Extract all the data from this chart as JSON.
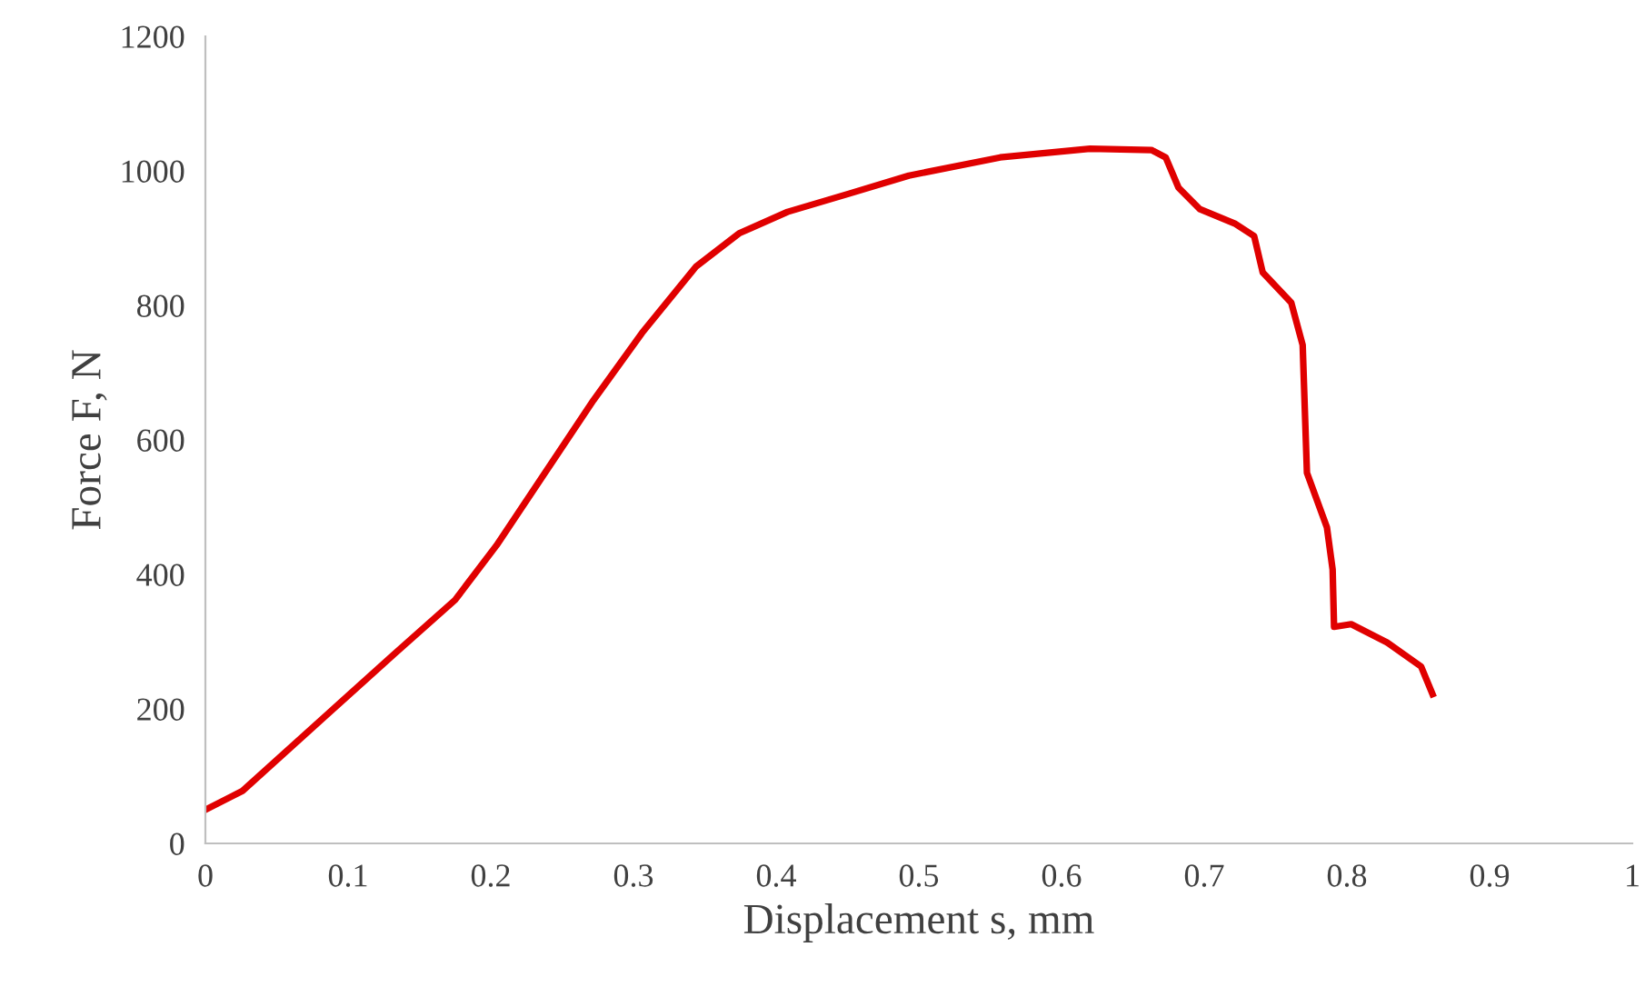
{
  "chart_data": {
    "type": "line",
    "xlabel": "Displacement s, mm",
    "ylabel": "Force F, N",
    "xlim": [
      0,
      1
    ],
    "xticks": [
      0,
      0.1,
      0.2,
      0.3,
      0.4,
      0.5,
      0.6,
      0.7,
      0.8,
      0.9,
      1
    ],
    "ylim": [
      0,
      1200
    ],
    "yticks": [
      0,
      200,
      400,
      600,
      800,
      1000,
      1200
    ],
    "grid": false,
    "marker": "none",
    "line_style": "solid",
    "series": [
      {
        "color": "#e00000",
        "x": [
          0,
          0.026,
          0.085,
          0.132,
          0.175,
          0.204,
          0.238,
          0.272,
          0.306,
          0.344,
          0.374,
          0.408,
          0.451,
          0.493,
          0.557,
          0.62,
          0.663,
          0.673,
          0.682,
          0.697,
          0.722,
          0.735,
          0.741,
          0.761,
          0.769,
          0.772,
          0.786,
          0.79,
          0.791,
          0.803,
          0.828,
          0.852,
          0.86
        ],
        "values": [
          50,
          78,
          191,
          281,
          362,
          443,
          551,
          659,
          759,
          858,
          907,
          939,
          966,
          993,
          1020,
          1033,
          1031,
          1020,
          975,
          943,
          921,
          903,
          849,
          804,
          741,
          551,
          470,
          407,
          322,
          326,
          299,
          263,
          222
        ]
      }
    ]
  }
}
